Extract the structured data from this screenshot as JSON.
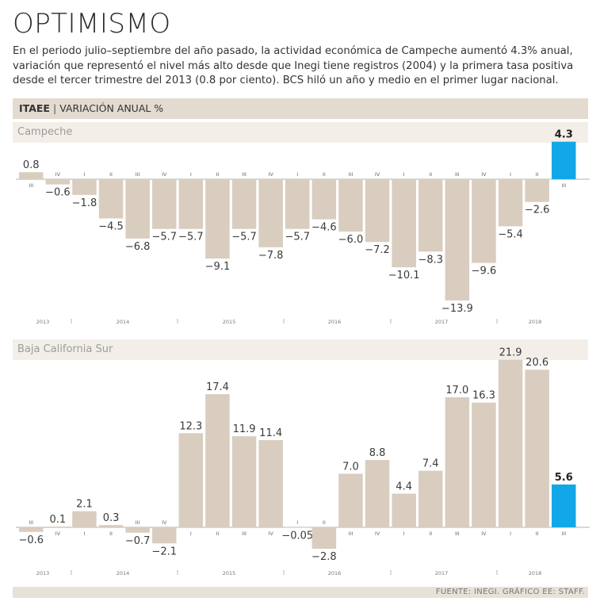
{
  "title": "OPTIMISMO",
  "subtitle": "En el periodo julio–septiembre del año pasado, la actividad económica de Campeche aumentó 4.3% anual, variación que representó el nivel más alto desde que Inegi tiene registros (2004) y la primera tasa positiva desde el tercer trimestre del 2013 (0.8 por ciento). BCS hiló un año y medio en el primer lugar nacional.",
  "header": {
    "indicator": "ITAEE",
    "separator": "|",
    "measure": "VARIACIÓN ANUAL %"
  },
  "footer": {
    "source": "FUENTE: INEGI. GRÁFICO EE: STAFF."
  },
  "colors": {
    "bar": "#d9cdbf",
    "highlight": "#12a8e8",
    "band": "#f3eee8"
  },
  "chart_data": [
    {
      "type": "bar",
      "title": "Campeche",
      "unit": "variación anual %",
      "categories": [
        "III",
        "IV",
        "I",
        "II",
        "III",
        "IV",
        "I",
        "II",
        "III",
        "IV",
        "I",
        "II",
        "III",
        "IV",
        "I",
        "II",
        "III",
        "IV",
        "I",
        "II",
        "III"
      ],
      "values": [
        0.8,
        -0.6,
        -1.8,
        -4.5,
        -6.8,
        -5.7,
        -5.7,
        -9.1,
        -5.7,
        -7.8,
        -5.7,
        -4.6,
        -6.0,
        -7.2,
        -10.1,
        -8.3,
        -13.9,
        -9.6,
        -5.4,
        -2.6,
        4.3
      ],
      "value_labels": [
        "0.8",
        "-0.6",
        "-1.8",
        "-4.5",
        "-6.8",
        "-5.7",
        "-5.7",
        "-9.1",
        "-5.7",
        "-7.8",
        "-5.7",
        "-4.6",
        "-6.0",
        "-7.2",
        "-10.1",
        "-8.3",
        "-13.9",
        "-9.6",
        "-5.4",
        "-2.6",
        "4.3"
      ],
      "highlight_index": 20,
      "years": [
        "2013",
        "2014",
        "2015",
        "2016",
        "2017",
        "2018"
      ],
      "ylim": [
        -15,
        5
      ]
    },
    {
      "type": "bar",
      "title": "Baja California Sur",
      "unit": "variación anual %",
      "categories": [
        "III",
        "IV",
        "I",
        "II",
        "III",
        "IV",
        "I",
        "II",
        "III",
        "IV",
        "I",
        "II",
        "III",
        "IV",
        "I",
        "II",
        "III",
        "IV",
        "I",
        "II",
        "III"
      ],
      "values": [
        -0.6,
        0.1,
        2.1,
        0.3,
        -0.7,
        -2.1,
        12.3,
        17.4,
        11.9,
        11.4,
        -0.05,
        -2.8,
        7.0,
        8.8,
        4.4,
        7.4,
        17.0,
        16.3,
        21.9,
        20.6,
        5.6
      ],
      "value_labels": [
        "-0.6",
        "0.1",
        "2.1",
        "0.3",
        "-0.7",
        "-2.1",
        "12.3",
        "17.4",
        "11.9",
        "11.4",
        "-0.05",
        "-2.8",
        "7.0",
        "8.8",
        "4.4",
        "7.4",
        "17.0",
        "16.3",
        "21.9",
        "20.6",
        "5.6"
      ],
      "highlight_index": 20,
      "years": [
        "2013",
        "2014",
        "2015",
        "2016",
        "2017",
        "2018"
      ],
      "ylim": [
        -3,
        23
      ]
    }
  ]
}
